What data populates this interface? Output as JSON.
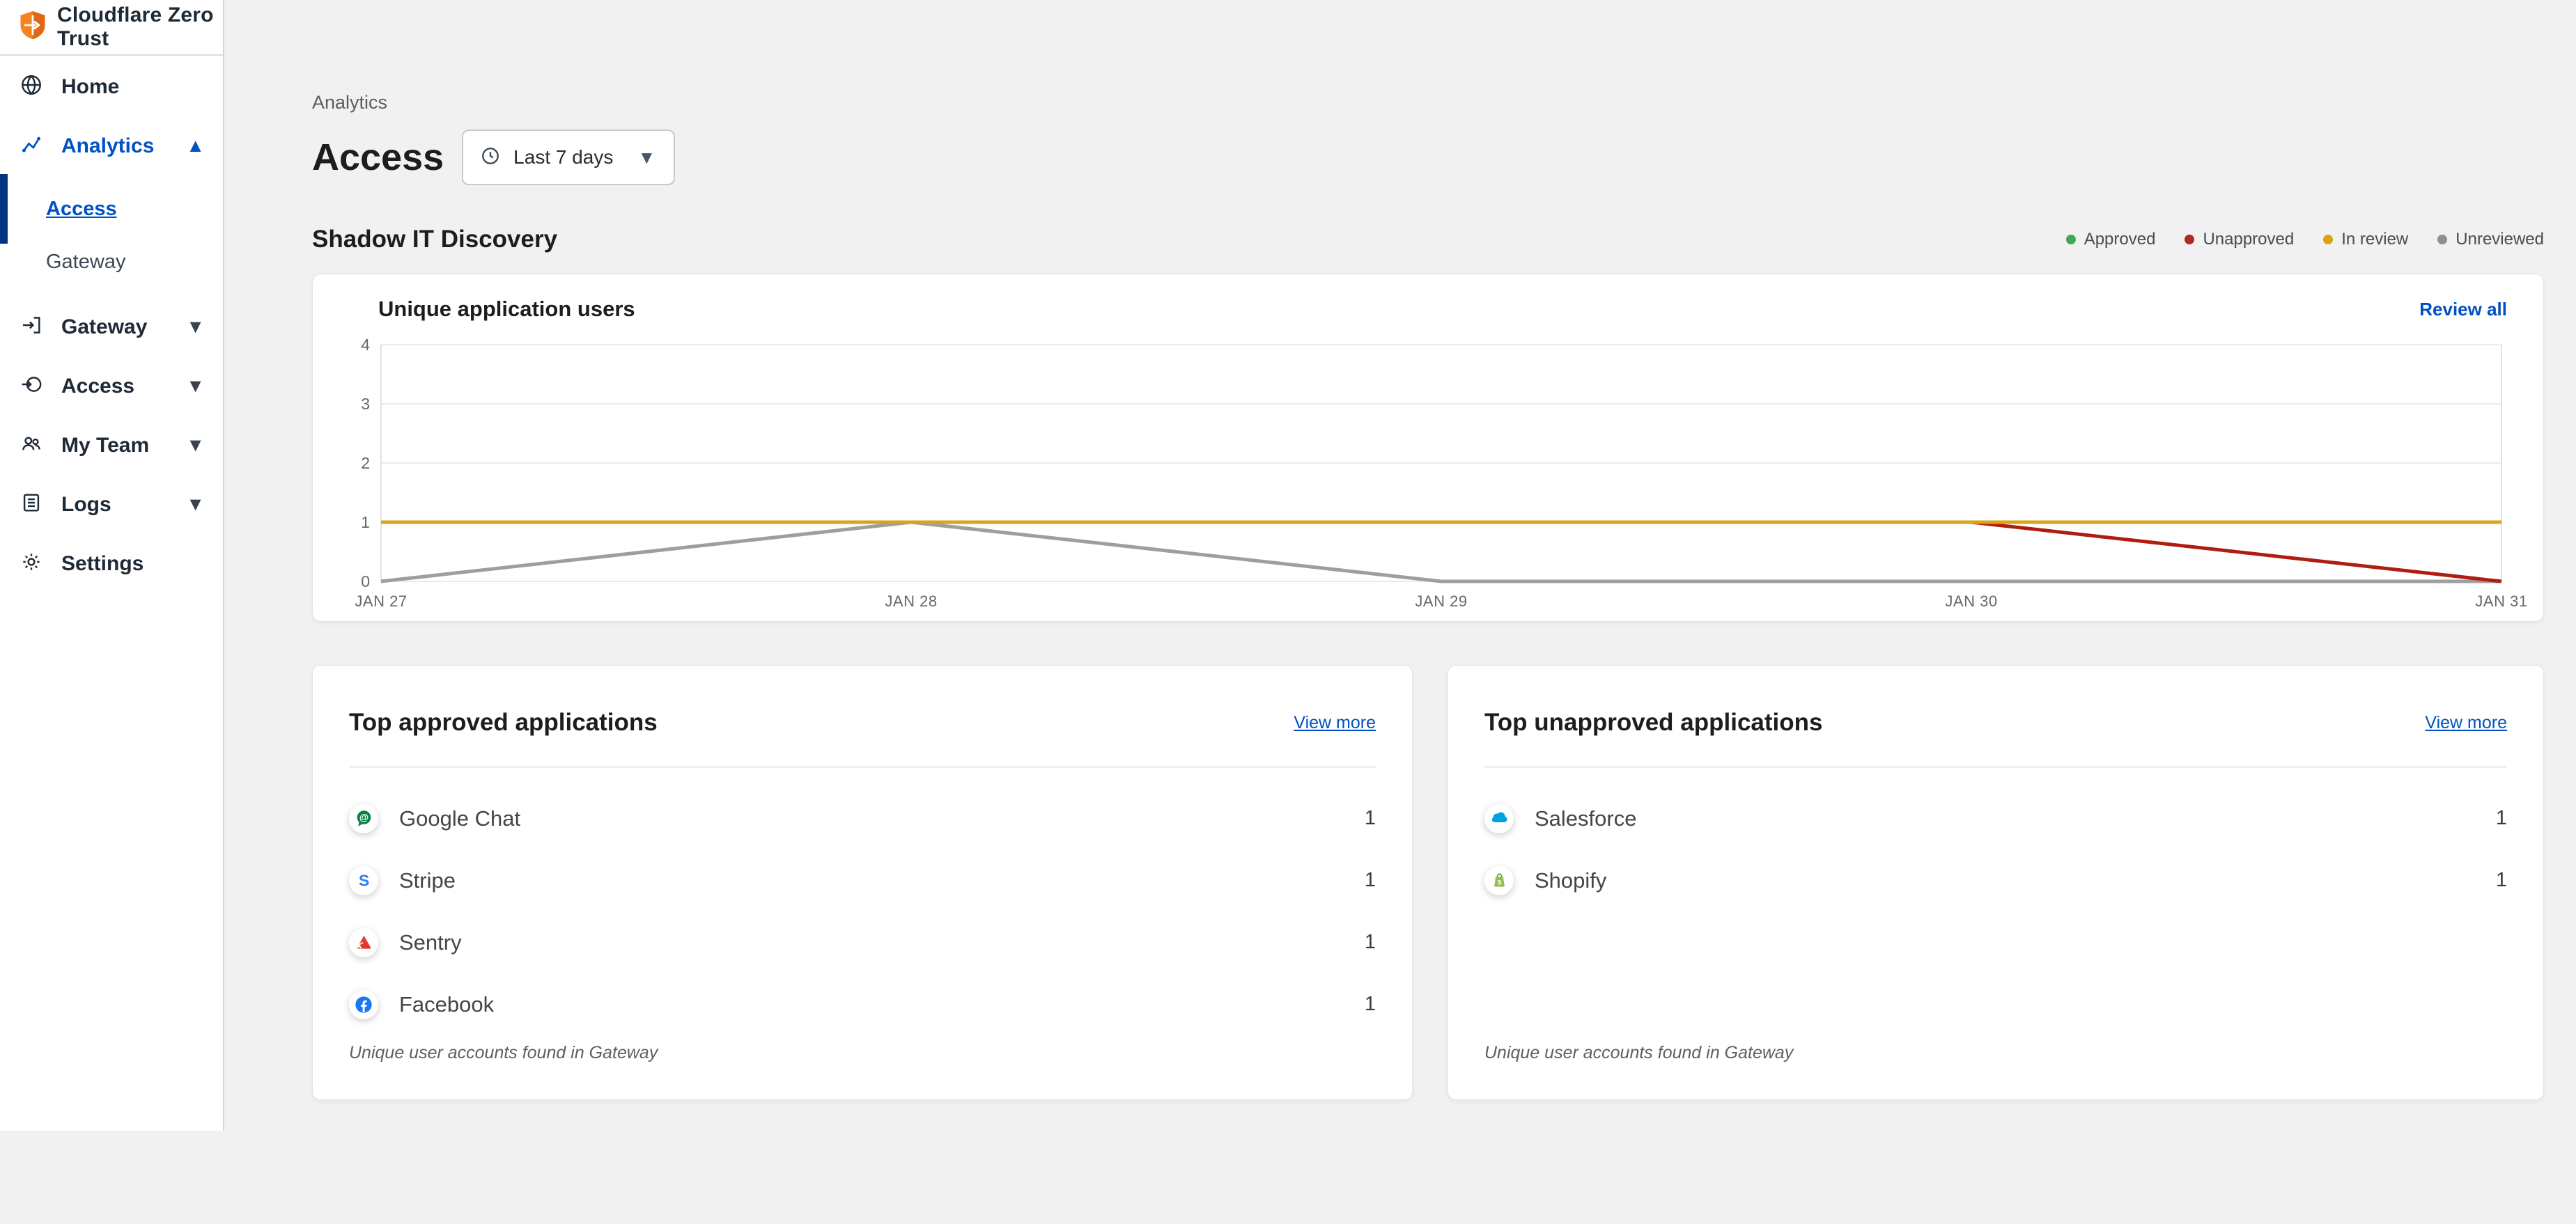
{
  "app": {
    "name": "Cloudflare Zero Trust"
  },
  "sidebar": {
    "items": [
      {
        "label": "Home",
        "icon": "globe"
      },
      {
        "label": "Analytics",
        "icon": "analytics",
        "active": true,
        "expanded": true,
        "children": [
          {
            "label": "Access",
            "active": true
          },
          {
            "label": "Gateway",
            "active": false
          }
        ]
      },
      {
        "label": "Gateway",
        "icon": "gateway",
        "collapsible": true
      },
      {
        "label": "Access",
        "icon": "access",
        "collapsible": true
      },
      {
        "label": "My Team",
        "icon": "team",
        "collapsible": true
      },
      {
        "label": "Logs",
        "icon": "logs",
        "collapsible": true
      },
      {
        "label": "Settings",
        "icon": "gear"
      }
    ]
  },
  "header": {
    "breadcrumb": "Analytics",
    "title": "Access",
    "time_range": "Last 7 days"
  },
  "section": {
    "title": "Shadow IT Discovery",
    "legend": [
      {
        "label": "Approved",
        "color": "#46a557"
      },
      {
        "label": "Unapproved",
        "color": "#b2271f"
      },
      {
        "label": "In review",
        "color": "#d9a514"
      },
      {
        "label": "Unreviewed",
        "color": "#8f8f8f"
      }
    ]
  },
  "chart": {
    "title": "Unique application users",
    "action": "Review all"
  },
  "chart_data": {
    "type": "line",
    "title": "Unique application users",
    "x": [
      "JAN 27",
      "JAN 28",
      "JAN 29",
      "JAN 30",
      "JAN 31"
    ],
    "series": [
      {
        "name": "Unreviewed",
        "color": "#9e9e9e",
        "values": [
          0,
          1,
          0,
          0,
          0
        ]
      },
      {
        "name": "Unapproved",
        "color": "#b01d10",
        "values": [
          1,
          1,
          1,
          1,
          0
        ]
      },
      {
        "name": "In review",
        "color": "#d9a514",
        "values": [
          1,
          1,
          1,
          1,
          1
        ]
      },
      {
        "name": "Approved",
        "color": "#46a557",
        "values": []
      }
    ],
    "xlabel": "",
    "ylabel": "",
    "ylim": [
      0,
      4
    ],
    "yticks": [
      0,
      1,
      2,
      3,
      4
    ],
    "grid": true,
    "legend_position": "top-right"
  },
  "cards": [
    {
      "title": "Top approved applications",
      "action": "View more",
      "rows": [
        {
          "name": "Google Chat",
          "icon": "google-chat",
          "count": 1
        },
        {
          "name": "Stripe",
          "icon": "stripe",
          "count": 1
        },
        {
          "name": "Sentry",
          "icon": "sentry",
          "count": 1
        },
        {
          "name": "Facebook",
          "icon": "facebook",
          "count": 1
        }
      ],
      "footnote": "Unique user accounts found in Gateway"
    },
    {
      "title": "Top unapproved applications",
      "action": "View more",
      "rows": [
        {
          "name": "Salesforce",
          "icon": "salesforce",
          "count": 1
        },
        {
          "name": "Shopify",
          "icon": "shopify",
          "count": 1
        }
      ],
      "footnote": "Unique user accounts found in Gateway"
    }
  ]
}
